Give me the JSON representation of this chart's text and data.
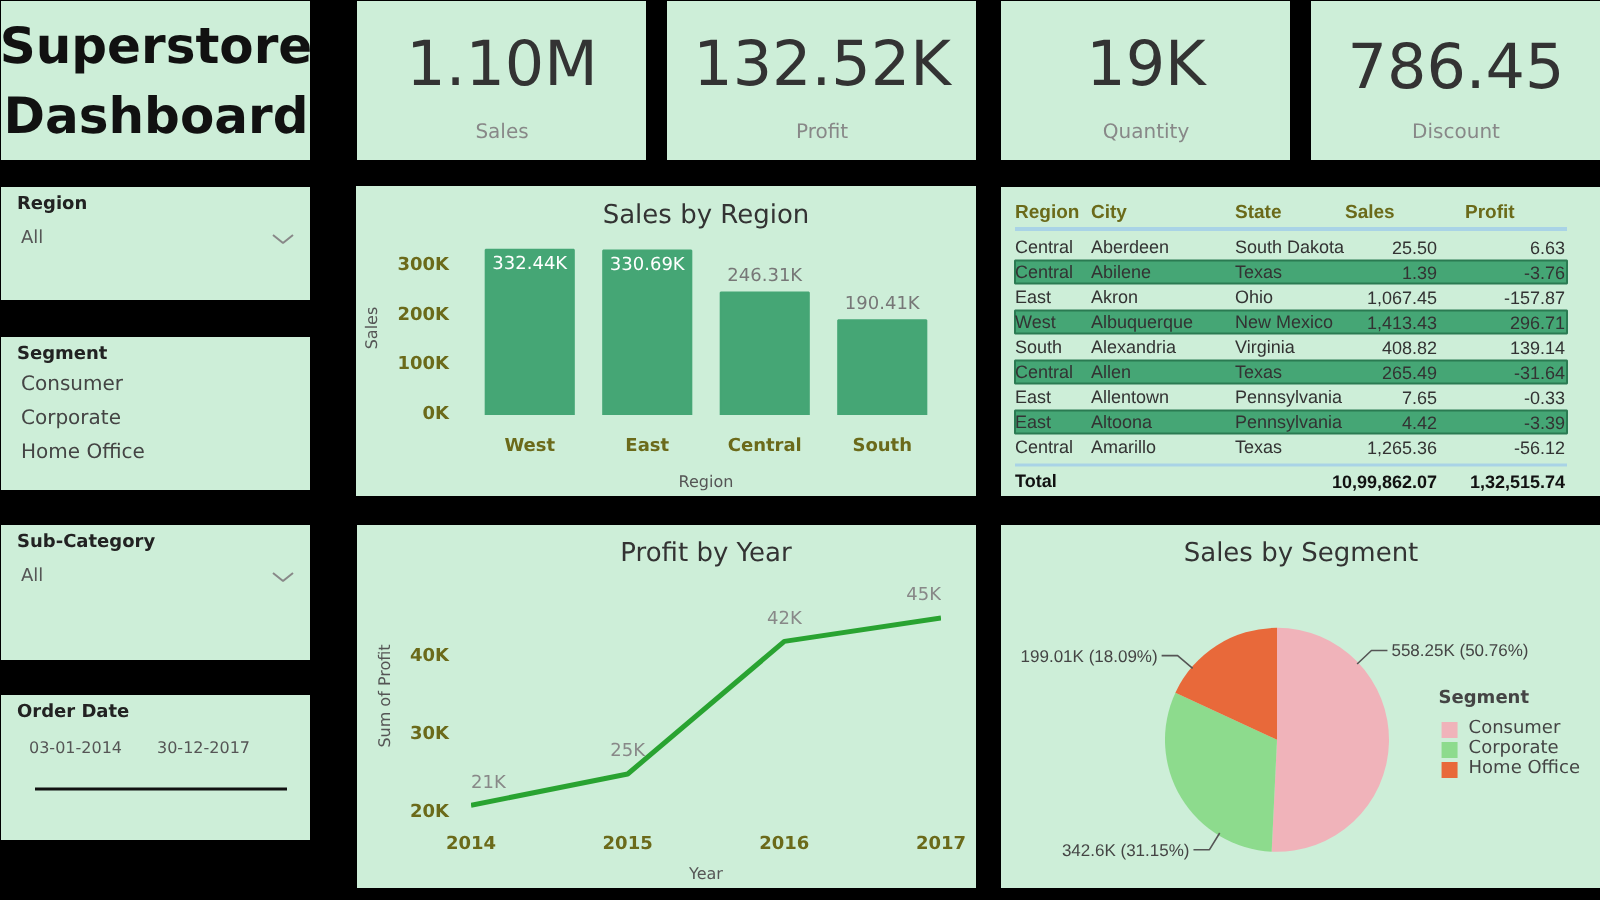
{
  "chart_data": [
    {
      "type": "other",
      "title": "Superstore Dashboard"
    },
    {
      "type": "other",
      "annotations": [
        "1.10M",
        "Sales"
      ]
    },
    {
      "type": "other",
      "annotations": [
        "132.52K",
        "Profit"
      ]
    },
    {
      "type": "other",
      "annotations": [
        "19K",
        "Quantity"
      ]
    },
    {
      "type": "other",
      "annotations": [
        "786.45",
        "Discount"
      ]
    },
    {
      "type": "other",
      "title": "Region",
      "annotations": [
        "All"
      ]
    },
    {
      "type": "other",
      "title": "Segment",
      "annotations": [
        "Consumer",
        "Corporate",
        "Home Office"
      ]
    },
    {
      "type": "other",
      "title": "Sub-Category",
      "annotations": [
        "All"
      ]
    },
    {
      "type": "other",
      "title": "Order Date",
      "annotations": [
        "03-01-2014",
        "30-12-2017"
      ]
    },
    {
      "type": "bar",
      "title": "Sales by Region",
      "xlabel": "Region",
      "ylabel": "Sales",
      "categories": [
        "West",
        "East",
        "Central",
        "South"
      ],
      "values": [
        332.44,
        330.69,
        246.31,
        190.41
      ],
      "color": "#45a675",
      "value_labels": [
        "332.44K",
        "330.69K",
        "246.31K",
        "190.41K"
      ],
      "ylim": [
        0,
        350
      ],
      "yticks": [
        {
          "value": 0,
          "label": "0K"
        },
        {
          "value": 100,
          "label": "100K"
        },
        {
          "value": 200,
          "label": "200K"
        },
        {
          "value": 300,
          "label": "300K"
        }
      ]
    },
    {
      "type": "other",
      "categories": [
        "Region",
        "City",
        "State",
        "Sales",
        "Profit"
      ],
      "cell_labels": [
        [
          "Central",
          "Aberdeen",
          "South Dakota",
          "25.50",
          "6.63"
        ],
        [
          "Central",
          "Abilene",
          "Texas",
          "1.39",
          "-3.76"
        ],
        [
          "East",
          "Akron",
          "Ohio",
          "1,067.45",
          "-157.87"
        ],
        [
          "West",
          "Albuquerque",
          "New Mexico",
          "1,413.43",
          "296.71"
        ],
        [
          "South",
          "Alexandria",
          "Virginia",
          "408.82",
          "139.14"
        ],
        [
          "Central",
          "Allen",
          "Texas",
          "265.49",
          "-31.64"
        ],
        [
          "East",
          "Allentown",
          "Pennsylvania",
          "7.65",
          "-0.33"
        ],
        [
          "East",
          "Altoona",
          "Pennsylvania",
          "4.42",
          "-3.39"
        ],
        [
          "Central",
          "Amarillo",
          "Texas",
          "1,265.36",
          "-56.12"
        ],
        [
          "Total",
          null,
          null,
          "10,99,862.07",
          "1,32,515.74"
        ]
      ]
    },
    {
      "type": "line",
      "title": "Profit by Year",
      "xlabel": "Year",
      "ylabel": "Sum of Profit",
      "x": [
        2014,
        2015,
        2016,
        2017
      ],
      "values": [
        21,
        25,
        42,
        45
      ],
      "color": "#29a331",
      "value_labels": [
        "21K",
        "25K",
        "42K",
        "45K"
      ],
      "xlim": [
        2014,
        2017
      ],
      "xticks": [
        2014,
        2015,
        2016,
        2017
      ],
      "ylim": [
        20,
        50
      ],
      "yticks": [
        {
          "value": 20,
          "label": "20K"
        },
        {
          "value": 30,
          "label": "30K"
        },
        {
          "value": 40,
          "label": "40K"
        }
      ]
    },
    {
      "type": "pie",
      "title": "Sales by Segment",
      "categories": [
        "Consumer",
        "Corporate",
        "Home Office"
      ],
      "values": [
        50.76,
        31.15,
        18.09
      ],
      "colors": [
        "#f0b3ba",
        "#8ddb8d",
        "#e8693a"
      ],
      "value_labels": [
        "558.25K (50.76%)",
        "342.6K (31.15%)",
        "199.01K (18.09%)"
      ],
      "legend": "right",
      "legend_title": "Segment"
    }
  ]
}
